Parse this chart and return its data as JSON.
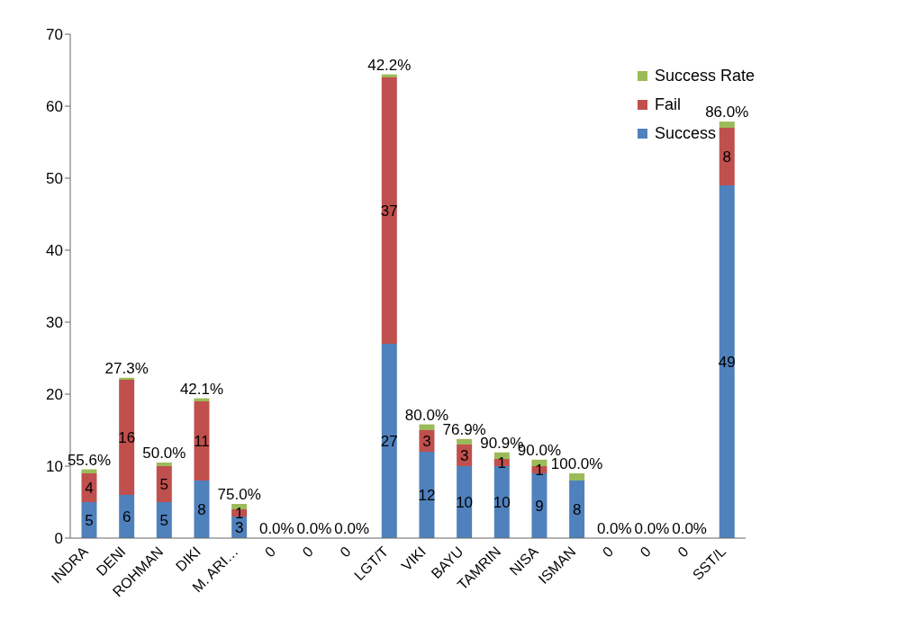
{
  "chart_data": {
    "type": "bar",
    "stacked": true,
    "categories": [
      "INDRA",
      "DENI",
      "ROHMAN",
      "DIKI",
      "M. ARI…",
      "0",
      "0",
      "0",
      "LGT/T",
      "VIKI",
      "BAYU",
      "TAMRIN",
      "NISA",
      "ISMAN",
      "0",
      "0",
      "0",
      "SST/L"
    ],
    "series": [
      {
        "name": "Success",
        "color": "#4f81bd",
        "values": [
          5,
          6,
          5,
          8,
          3,
          0,
          0,
          0,
          27,
          12,
          10,
          10,
          9,
          8,
          0,
          0,
          0,
          49
        ],
        "value_labels": [
          "5",
          "6",
          "5",
          "8",
          "3",
          null,
          null,
          null,
          "27",
          "12",
          "10",
          "10",
          "9",
          "8",
          null,
          null,
          null,
          "49"
        ]
      },
      {
        "name": "Fail",
        "color": "#c0504d",
        "values": [
          4,
          16,
          5,
          11,
          1,
          0,
          0,
          0,
          37,
          3,
          3,
          1,
          1,
          0,
          0,
          0,
          0,
          8
        ],
        "value_labels": [
          "4",
          "16",
          "5",
          "11",
          "1",
          null,
          null,
          null,
          "37",
          "3",
          "3",
          "1",
          "1",
          null,
          null,
          null,
          null,
          "8"
        ]
      },
      {
        "name": "Success Rate",
        "color": "#9bbb59",
        "values": [
          0.556,
          0.273,
          0.5,
          0.421,
          0.75,
          0,
          0,
          0,
          0.422,
          0.8,
          0.769,
          0.909,
          0.9,
          1.0,
          0,
          0,
          0,
          0.86
        ],
        "value_labels": [
          "55.6%",
          "27.3%",
          "50.0%",
          "42.1%",
          "75.0%",
          "0.0%",
          "0.0%",
          "0.0%",
          "42.2%",
          "80.0%",
          "76.9%",
          "90.9%",
          "90.0%",
          "100.0%",
          "0.0%",
          "0.0%",
          "0.0%",
          "86.0%"
        ]
      }
    ],
    "ylim": [
      0,
      70
    ],
    "yticks": [
      0,
      10,
      20,
      30,
      40,
      50,
      60,
      70
    ],
    "grid": false,
    "legend": "top right"
  }
}
